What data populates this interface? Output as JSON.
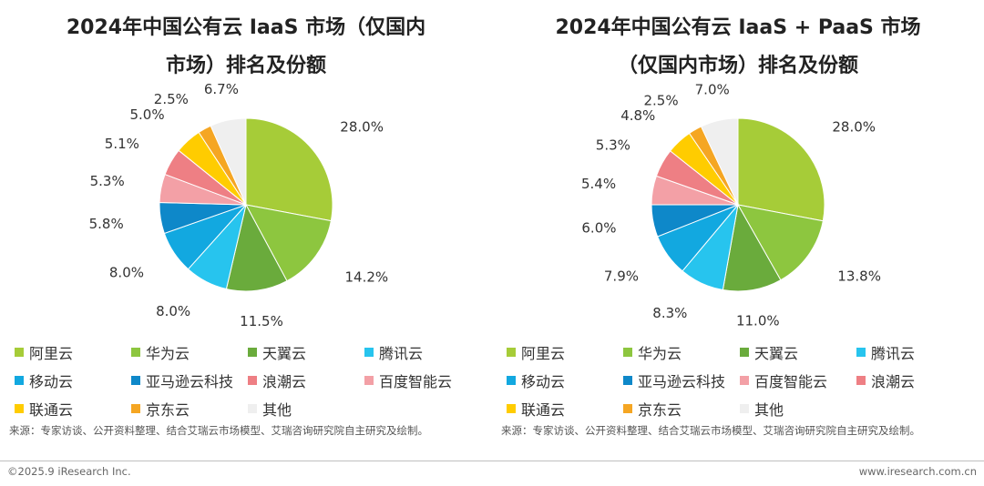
{
  "categories": [
    "阿里云",
    "华为云",
    "天翼云",
    "腾讯云",
    "移动云",
    "亚马逊云科技",
    "百度智能云",
    "浪潮云",
    "联通云",
    "京东云",
    "其他"
  ],
  "chart_data": [
    {
      "type": "pie",
      "title": "2024年中国公有云 IaaS 市场（仅国内市场）排名及份额",
      "title_line1": "2024年中国公有云 IaaS 市场（仅国内",
      "title_line2": "市场）排名及份额",
      "slices": [
        {
          "name": "阿里云",
          "value": 28.0,
          "label": "28.0%",
          "color": "#a6cc38"
        },
        {
          "name": "华为云",
          "value": 14.2,
          "label": "14.2%",
          "color": "#8dc63f"
        },
        {
          "name": "天翼云",
          "value": 11.5,
          "label": "11.5%",
          "color": "#6aab3c"
        },
        {
          "name": "腾讯云",
          "value": 8.0,
          "label": "8.0%",
          "color": "#27c4ee"
        },
        {
          "name": "移动云",
          "value": 8.0,
          "label": "8.0%",
          "color": "#12a8e0"
        },
        {
          "name": "亚马逊云科技",
          "value": 5.8,
          "label": "5.8%",
          "color": "#0e88c9"
        },
        {
          "name": "百度智能云",
          "value": 5.3,
          "label": "5.3%",
          "color": "#f3a0a6"
        },
        {
          "name": "浪潮云",
          "value": 5.1,
          "label": "5.1%",
          "color": "#ee7f84"
        },
        {
          "name": "联通云",
          "value": 5.0,
          "label": "5.0%",
          "color": "#ffcc00"
        },
        {
          "name": "京东云",
          "value": 2.5,
          "label": "2.5%",
          "color": "#f5a623"
        },
        {
          "name": "其他",
          "value": 6.7,
          "label": "6.7%",
          "color": "#efefef"
        }
      ]
    },
    {
      "type": "pie",
      "title": "2024年中国公有云 IaaS + PaaS 市场（仅国内市场）排名及份额",
      "title_line1": "2024年中国公有云 IaaS + PaaS 市场",
      "title_line2": "（仅国内市场）排名及份额",
      "slices": [
        {
          "name": "阿里云",
          "value": 28.0,
          "label": "28.0%",
          "color": "#a6cc38"
        },
        {
          "name": "华为云",
          "value": 13.8,
          "label": "13.8%",
          "color": "#8dc63f"
        },
        {
          "name": "天翼云",
          "value": 11.0,
          "label": "11.0%",
          "color": "#6aab3c"
        },
        {
          "name": "腾讯云",
          "value": 8.3,
          "label": "8.3%",
          "color": "#27c4ee"
        },
        {
          "name": "移动云",
          "value": 7.9,
          "label": "7.9%",
          "color": "#12a8e0"
        },
        {
          "name": "亚马逊云科技",
          "value": 6.0,
          "label": "6.0%",
          "color": "#0e88c9"
        },
        {
          "name": "百度智能云",
          "value": 5.4,
          "label": "5.4%",
          "color": "#f3a0a6"
        },
        {
          "name": "浪潮云",
          "value": 5.3,
          "label": "5.3%",
          "color": "#ee7f84"
        },
        {
          "name": "联通云",
          "value": 4.8,
          "label": "4.8%",
          "color": "#ffcc00"
        },
        {
          "name": "京东云",
          "value": 2.5,
          "label": "2.5%",
          "color": "#f5a623"
        },
        {
          "name": "其他",
          "value": 7.0,
          "label": "7.0%",
          "color": "#efefef"
        }
      ]
    }
  ],
  "legend_left": [
    "阿里云",
    "华为云",
    "天翼云",
    "腾讯云",
    "移动云",
    "亚马逊云科技",
    "浪潮云",
    "百度智能云",
    "联通云",
    "京东云",
    "其他"
  ],
  "legend_right": [
    "阿里云",
    "华为云",
    "天翼云",
    "腾讯云",
    "移动云",
    "亚马逊云科技",
    "百度智能云",
    "浪潮云",
    "联通云",
    "京东云",
    "其他"
  ],
  "source_text": "来源：专家访谈、公开资料整理、结合艾瑞云市场模型、艾瑞咨询研究院自主研究及绘制。",
  "footer": {
    "copyright": "©2025.9 iResearch Inc.",
    "website": "www.iresearch.com.cn"
  }
}
